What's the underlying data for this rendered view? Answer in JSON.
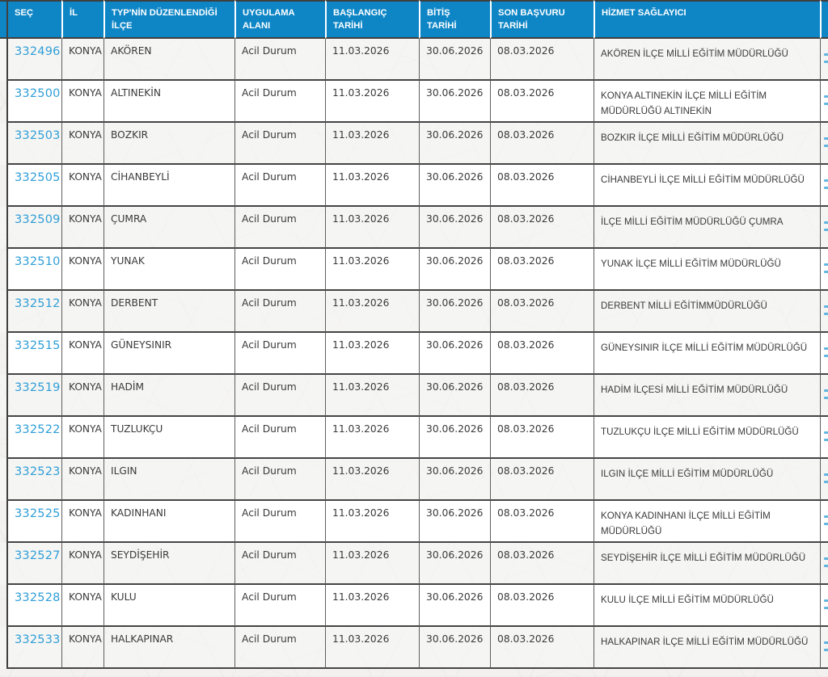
{
  "colors": {
    "header_bg": "#0e86c6",
    "link_blue": "#2f9ed8",
    "text": "#3a3a3a",
    "border_dark": "#3f3f3f"
  },
  "table": {
    "columns": [
      {
        "key": "sec",
        "label": "SEÇ"
      },
      {
        "key": "il",
        "label": "İL"
      },
      {
        "key": "ilce",
        "label": "TYP'NİN DÜZENLENDİĞİ\nİLÇE"
      },
      {
        "key": "alan",
        "label": "UYGULAMA\nALANI"
      },
      {
        "key": "baslangic",
        "label": "BAŞLANGIÇ\nTARİHİ"
      },
      {
        "key": "bitis",
        "label": "BİTİŞ\nTARİHİ"
      },
      {
        "key": "son_basvuru",
        "label": "SON BAŞVURU\nTARİHİ"
      },
      {
        "key": "saglayici",
        "label": "HİZMET SAĞLAYICI"
      }
    ],
    "rows": [
      {
        "sec": "332496",
        "il": "KONYA",
        "ilce": "AKÖREN",
        "alan": "Acil Durum",
        "baslangic": "11.03.2026",
        "bitis": "30.06.2026",
        "son_basvuru": "08.03.2026",
        "saglayici": "AKÖREN İLÇE MİLLİ EĞİTİM MÜDÜRLÜĞÜ"
      },
      {
        "sec": "332500",
        "il": "KONYA",
        "ilce": "ALTINEKİN",
        "alan": "Acil Durum",
        "baslangic": "11.03.2026",
        "bitis": "30.06.2026",
        "son_basvuru": "08.03.2026",
        "saglayici": "KONYA ALTINEKİN İLÇE MİLLİ EĞİTİM MÜDÜRLÜĞÜ ALTINEKİN"
      },
      {
        "sec": "332503",
        "il": "KONYA",
        "ilce": "BOZKIR",
        "alan": "Acil Durum",
        "baslangic": "11.03.2026",
        "bitis": "30.06.2026",
        "son_basvuru": "08.03.2026",
        "saglayici": "BOZKIR İLÇE MİLLİ EĞİTİM MÜDÜRLÜĞÜ"
      },
      {
        "sec": "332505",
        "il": "KONYA",
        "ilce": "CİHANBEYLİ",
        "alan": "Acil Durum",
        "baslangic": "11.03.2026",
        "bitis": "30.06.2026",
        "son_basvuru": "08.03.2026",
        "saglayici": "CİHANBEYLİ İLÇE MİLLİ EĞİTİM MÜDÜRLÜĞÜ"
      },
      {
        "sec": "332509",
        "il": "KONYA",
        "ilce": "ÇUMRA",
        "alan": "Acil Durum",
        "baslangic": "11.03.2026",
        "bitis": "30.06.2026",
        "son_basvuru": "08.03.2026",
        "saglayici": "İLÇE MİLLİ EĞİTİM MÜDÜRLÜĞÜ ÇUMRA"
      },
      {
        "sec": "332510",
        "il": "KONYA",
        "ilce": "YUNAK",
        "alan": "Acil Durum",
        "baslangic": "11.03.2026",
        "bitis": "30.06.2026",
        "son_basvuru": "08.03.2026",
        "saglayici": "YUNAK İLÇE MİLLİ EĞİTİM MÜDÜRLÜĞÜ"
      },
      {
        "sec": "332512",
        "il": "KONYA",
        "ilce": "DERBENT",
        "alan": "Acil Durum",
        "baslangic": "11.03.2026",
        "bitis": "30.06.2026",
        "son_basvuru": "08.03.2026",
        "saglayici": "DERBENT MİLLİ EĞİTİMMÜDÜRLÜĞÜ"
      },
      {
        "sec": "332515",
        "il": "KONYA",
        "ilce": "GÜNEYSINIR",
        "alan": "Acil Durum",
        "baslangic": "11.03.2026",
        "bitis": "30.06.2026",
        "son_basvuru": "08.03.2026",
        "saglayici": "GÜNEYSINIR İLÇE MİLLİ EĞİTİM MÜDÜRLÜĞÜ"
      },
      {
        "sec": "332519",
        "il": "KONYA",
        "ilce": "HADİM",
        "alan": "Acil Durum",
        "baslangic": "11.03.2026",
        "bitis": "30.06.2026",
        "son_basvuru": "08.03.2026",
        "saglayici": "HADİM İLÇESİ MİLLİ EĞİTİM MÜDÜRLÜĞÜ"
      },
      {
        "sec": "332522",
        "il": "KONYA",
        "ilce": "TUZLUKÇU",
        "alan": "Acil Durum",
        "baslangic": "11.03.2026",
        "bitis": "30.06.2026",
        "son_basvuru": "08.03.2026",
        "saglayici": "TUZLUKÇU İLÇE MİLLİ EĞİTİM MÜDÜRLÜĞÜ"
      },
      {
        "sec": "332523",
        "il": "KONYA",
        "ilce": "ILGIN",
        "alan": "Acil Durum",
        "baslangic": "11.03.2026",
        "bitis": "30.06.2026",
        "son_basvuru": "08.03.2026",
        "saglayici": "ILGIN İLÇE MİLLİ EĞİTİM MÜDÜRLÜĞÜ"
      },
      {
        "sec": "332525",
        "il": "KONYA",
        "ilce": "KADINHANI",
        "alan": "Acil Durum",
        "baslangic": "11.03.2026",
        "bitis": "30.06.2026",
        "son_basvuru": "08.03.2026",
        "saglayici": "KONYA KADINHANI İLÇE MİLLİ EĞİTİM MÜDÜRLÜĞÜ"
      },
      {
        "sec": "332527",
        "il": "KONYA",
        "ilce": "SEYDİŞEHİR",
        "alan": "Acil Durum",
        "baslangic": "11.03.2026",
        "bitis": "30.06.2026",
        "son_basvuru": "08.03.2026",
        "saglayici": "SEYDİŞEHİR İLÇE MİLLİ EĞİTİM MÜDÜRLÜĞÜ"
      },
      {
        "sec": "332528",
        "il": "KONYA",
        "ilce": "KULU",
        "alan": "Acil Durum",
        "baslangic": "11.03.2026",
        "bitis": "30.06.2026",
        "son_basvuru": "08.03.2026",
        "saglayici": "KULU İLÇE MİLLİ EĞİTİM MÜDÜRLÜĞÜ"
      },
      {
        "sec": "332533",
        "il": "KONYA",
        "ilce": "HALKAPINAR",
        "alan": "Acil Durum",
        "baslangic": "11.03.2026",
        "bitis": "30.06.2026",
        "son_basvuru": "08.03.2026",
        "saglayici": "HALKAPINAR İLÇE MİLLİ EĞİTİM MÜDÜRLÜĞÜ"
      }
    ]
  }
}
